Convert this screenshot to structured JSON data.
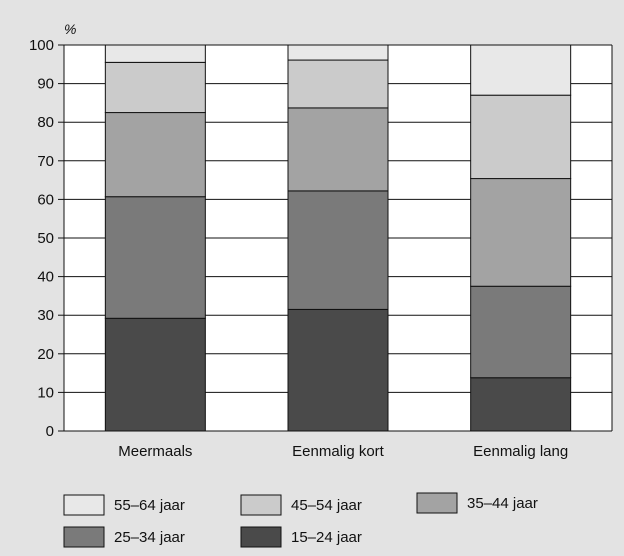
{
  "chart_data": {
    "type": "bar",
    "stacked": true,
    "unit_label": "%",
    "categories": [
      "Meermaals",
      "Eenmalig kort",
      "Eenmalig lang"
    ],
    "series": [
      {
        "name": "15–24 jaar",
        "values": [
          29.2,
          31.5,
          13.8
        ],
        "color": "#4a4a4a"
      },
      {
        "name": "25–34 jaar",
        "values": [
          31.5,
          30.7,
          23.7
        ],
        "color": "#7a7a7a"
      },
      {
        "name": "35–44 jaar",
        "values": [
          21.8,
          21.5,
          27.9
        ],
        "color": "#a3a3a3"
      },
      {
        "name": "45–54 jaar",
        "values": [
          13.0,
          12.4,
          21.6
        ],
        "color": "#cbcbcb"
      },
      {
        "name": "55–64 jaar",
        "values": [
          4.5,
          3.9,
          13.0
        ],
        "color": "#e8e8e8"
      }
    ],
    "ylim": [
      0,
      100
    ],
    "yticks": [
      0,
      10,
      20,
      30,
      40,
      50,
      60,
      70,
      80,
      90,
      100
    ],
    "grid": true,
    "legend": {
      "placement": "bottom",
      "order": [
        "55–64 jaar",
        "45–54 jaar",
        "35–44 jaar",
        "25–34 jaar",
        "15–24 jaar"
      ]
    }
  }
}
